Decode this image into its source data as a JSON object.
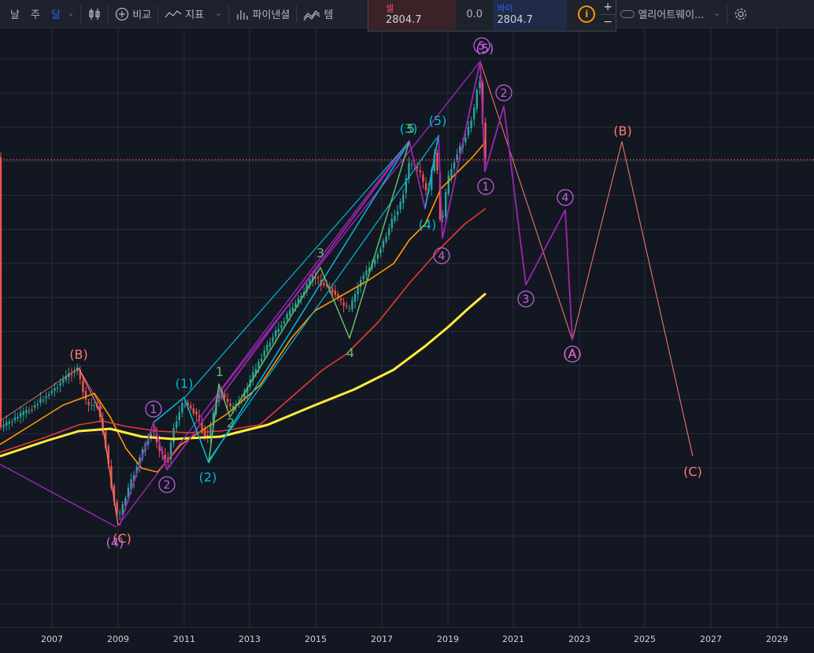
{
  "toolbar": {
    "intervals": [
      "날",
      "주",
      "달"
    ],
    "active_interval_index": 2,
    "compare_label": "비교",
    "indicators_label": "지표",
    "fin_label": "파이낸셜",
    "templates_label": "템",
    "layout_name": "엘리어트웨이...",
    "icons": [
      "chevron-down-icon",
      "candles-icon",
      "add-circle-icon",
      "indicator-wave-icon",
      "bar-chart-icon",
      "template-icon",
      "square-icon",
      "cloud-icon",
      "gear-icon"
    ]
  },
  "trade": {
    "sell_label": "셀",
    "sell_price": "2804.7",
    "spread": "0.0",
    "buy_label": "바이",
    "buy_price": "2804.7",
    "info_symbol": "i",
    "plus": "+",
    "minus": "−"
  },
  "colors": {
    "background": "#131722",
    "bull": "#26a69a",
    "bear": "#ef5350",
    "ma_orange": "#ff9800",
    "ma_red": "#e53935",
    "ma_yellow": "#ffeb3b",
    "wave_purple": "#9c27b0",
    "wave_cyan": "#00bcd4",
    "wave_green": "#66bb6a",
    "wave_salmon": "#ff7c70",
    "current_price_line": "#ef5350"
  },
  "time_axis": [
    "2007",
    "2009",
    "2011",
    "2013",
    "2015",
    "2017",
    "2019",
    "2021",
    "2023",
    "2025",
    "2027",
    "2029"
  ],
  "wave_labels": {
    "salmon": [
      "(B)",
      "(C)",
      "(A)",
      "(B)",
      "(C)"
    ],
    "purple_circled": [
      "1",
      "2",
      "1",
      "4",
      "5",
      "2",
      "4",
      "3",
      "A"
    ],
    "purple_plain": [
      "(4)",
      "(5)"
    ],
    "cyan": [
      "(1)",
      "(2)",
      "(3)",
      "(4)",
      "(5)"
    ],
    "green": [
      "1",
      "2",
      "3",
      "4",
      "5"
    ]
  }
}
